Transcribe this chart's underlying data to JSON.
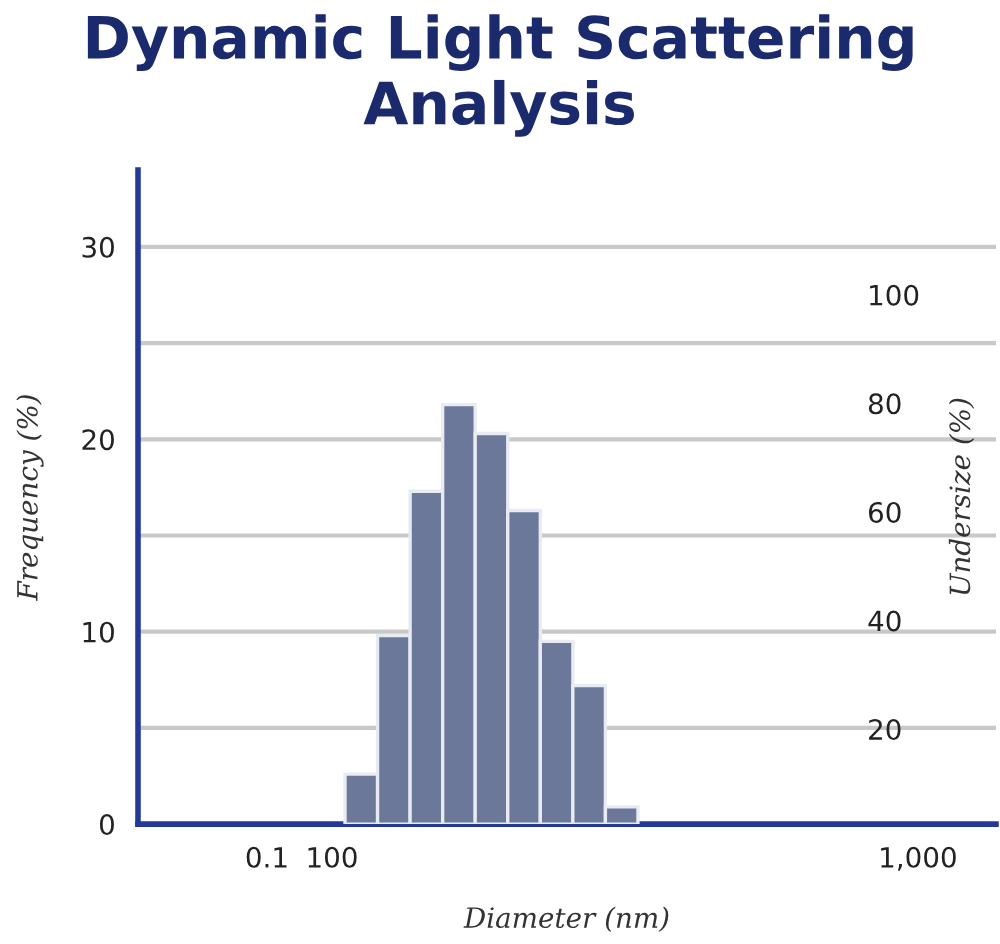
{
  "chart_data": {
    "type": "histogram",
    "title": "Dynamic Light Scattering Analysis",
    "xlabel": "Diameter (nm)",
    "ylabel": "Frequency (%)",
    "y2label": "Undersize (%)",
    "bins": [
      120,
      170,
      220,
      270,
      320,
      370,
      420,
      470,
      520,
      570
    ],
    "values": [
      2.6,
      9.8,
      17.3,
      21.8,
      20.3,
      16.3,
      9.5,
      7.2,
      0.9
    ],
    "color": "#6b7899",
    "xlim": [
      -198,
      1120
    ],
    "xticks": [
      {
        "value": 0.1,
        "label": "0.1"
      },
      100,
      {
        "value": 1000,
        "label": "1,000"
      }
    ],
    "ylim": [
      0,
      34
    ],
    "yticks": [
      0,
      {
        "value": 5,
        "label": null
      },
      10,
      {
        "value": 15,
        "label": null
      },
      20,
      {
        "value": 25,
        "label": null
      },
      30
    ],
    "y2lim": [
      2.5,
      123
    ],
    "y2ticks": [
      20,
      40,
      60,
      80,
      100
    ],
    "grid": "y"
  }
}
